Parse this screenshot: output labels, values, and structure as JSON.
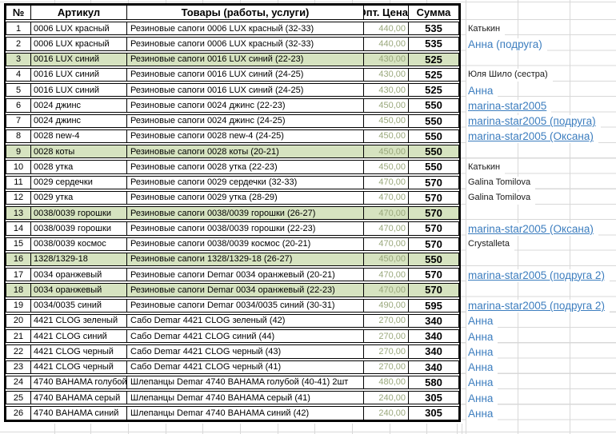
{
  "sheet": {
    "header": {
      "num": "№",
      "articul": "Артикул",
      "goods": "Товары (работы, услуги)",
      "price": "Опт. Цена",
      "sum": "Сумма"
    },
    "rows": [
      {
        "num": "1",
        "articul": "0006 LUX красный",
        "goods": "Резиновые сапоги 0006 LUX красный (32-33)",
        "price": "440,00",
        "sum": "535",
        "green": false,
        "name": "Катькин",
        "name_style": "plain"
      },
      {
        "num": "2",
        "articul": "0006 LUX красный",
        "goods": "Резиновые сапоги 0006 LUX красный (32-33)",
        "price": "440,00",
        "sum": "535",
        "green": false,
        "name": "Анна (подруга)",
        "name_style": "blue"
      },
      {
        "num": "3",
        "articul": "0016 LUX синий",
        "goods": "Резиновые сапоги 0016 LUX синий (22-23)",
        "price": "430,00",
        "sum": "525",
        "green": true,
        "name": "",
        "name_style": ""
      },
      {
        "num": "4",
        "articul": "0016 LUX синий",
        "goods": "Резиновые сапоги 0016 LUX синий (24-25)",
        "price": "430,00",
        "sum": "525",
        "green": false,
        "name": "Юля Шило (сестра)",
        "name_style": "plain"
      },
      {
        "num": "5",
        "articul": "0016 LUX синий",
        "goods": "Резиновые сапоги 0016 LUX синий (24-25)",
        "price": "430,00",
        "sum": "525",
        "green": false,
        "name": "Анна",
        "name_style": "blue"
      },
      {
        "num": "6",
        "articul": "0024 джинс",
        "goods": "Резиновые сапоги 0024 джинс (22-23)",
        "price": "450,00",
        "sum": "550",
        "green": false,
        "name": "marina-star2005",
        "name_style": "link"
      },
      {
        "num": "7",
        "articul": "0024 джинс",
        "goods": "Резиновые сапоги 0024 джинс (24-25)",
        "price": "450,00",
        "sum": "550",
        "green": false,
        "name": "marina-star2005 (подруга)",
        "name_style": "link"
      },
      {
        "num": "8",
        "articul": "0028 new-4",
        "goods": "Резиновые сапоги 0028 new-4 (24-25)",
        "price": "450,00",
        "sum": "550",
        "green": false,
        "name": "marina-star2005 (Оксана)",
        "name_style": "link"
      },
      {
        "num": "9",
        "articul": "0028 коты",
        "goods": "Резиновые сапоги 0028 коты (20-21)",
        "price": "450,00",
        "sum": "550",
        "green": true,
        "name": "",
        "name_style": ""
      },
      {
        "num": "10",
        "articul": "0028 утка",
        "goods": "Резиновые сапоги 0028 утка (22-23)",
        "price": "450,00",
        "sum": "550",
        "green": false,
        "name": "Катькин",
        "name_style": "plain"
      },
      {
        "num": "11",
        "articul": "0029 сердечки",
        "goods": "Резиновые сапоги 0029 сердечки (32-33)",
        "price": "470,00",
        "sum": "570",
        "green": false,
        "name": "Galina Tomilova",
        "name_style": "plain"
      },
      {
        "num": "12",
        "articul": "0029 утка",
        "goods": "Резиновые сапоги 0029 утка (28-29)",
        "price": "470,00",
        "sum": "570",
        "green": false,
        "name": "Galina Tomilova",
        "name_style": "plain"
      },
      {
        "num": "13",
        "articul": "0038/0039 горошки",
        "goods": "Резиновые сапоги 0038/0039 горошки (26-27)",
        "price": "470,00",
        "sum": "570",
        "green": true,
        "name": "",
        "name_style": ""
      },
      {
        "num": "14",
        "articul": "0038/0039 горошки",
        "goods": "Резиновые сапоги 0038/0039 горошки (22-23)",
        "price": "470,00",
        "sum": "570",
        "green": false,
        "name": "marina-star2005 (Оксана)",
        "name_style": "link"
      },
      {
        "num": "15",
        "articul": "0038/0039 космос",
        "goods": "Резиновые сапоги 0038/0039 космос (20-21)",
        "price": "470,00",
        "sum": "570",
        "green": false,
        "name": "Crystalleta",
        "name_style": "plain"
      },
      {
        "num": "16",
        "articul": "1328/1329-18",
        "goods": "Резиновые сапоги 1328/1329-18 (26-27)",
        "price": "450,00",
        "sum": "550",
        "green": true,
        "name": "",
        "name_style": ""
      },
      {
        "num": "17",
        "articul": "0034 оранжевый",
        "goods": "Резиновые сапоги Demar 0034 оранжевый (20-21)",
        "price": "470,00",
        "sum": "570",
        "green": false,
        "name": "marina-star2005 (подруга 2)",
        "name_style": "link"
      },
      {
        "num": "18",
        "articul": "0034 оранжевый",
        "goods": "Резиновые сапоги Demar 0034 оранжевый (22-23)",
        "price": "470,00",
        "sum": "570",
        "green": true,
        "name": "",
        "name_style": ""
      },
      {
        "num": "19",
        "articul": "0034/0035 синий",
        "goods": "Резиновые сапоги Demar 0034/0035 синий (30-31)",
        "price": "490,00",
        "sum": "595",
        "green": false,
        "name": "marina-star2005 (подруга 2)",
        "name_style": "link"
      },
      {
        "num": "20",
        "articul": "4421 CLOG зеленый",
        "goods": "Сабо Demar 4421 CLOG зеленый (42)",
        "price": "270,00",
        "sum": "340",
        "green": false,
        "name": "Анна",
        "name_style": "blue"
      },
      {
        "num": "21",
        "articul": "4421 CLOG синий",
        "goods": "Сабо Demar 4421 CLOG синий (44)",
        "price": "270,00",
        "sum": "340",
        "green": false,
        "name": "Анна",
        "name_style": "blue"
      },
      {
        "num": "22",
        "articul": "4421 CLOG черный",
        "goods": "Сабо Demar 4421 CLOG черный (43)",
        "price": "270,00",
        "sum": "340",
        "green": false,
        "name": "Анна",
        "name_style": "blue"
      },
      {
        "num": "23",
        "articul": "4421 CLOG черный",
        "goods": "Сабо Demar 4421 CLOG черный (41)",
        "price": "270,00",
        "sum": "340",
        "green": false,
        "name": "Анна",
        "name_style": "blue"
      },
      {
        "num": "24",
        "articul": "4740 BAHAMA голубой",
        "goods": "Шлепанцы Demar 4740 BAHAMA голубой (40-41) 2шт",
        "price": "480,00",
        "sum": "580",
        "green": false,
        "name": "Анна",
        "name_style": "blue"
      },
      {
        "num": "25",
        "articul": "4740 BAHAMA серый",
        "goods": "Шлепанцы Demar 4740 BAHAMA серый (41)",
        "price": "240,00",
        "sum": "305",
        "green": false,
        "name": "Анна",
        "name_style": "blue"
      },
      {
        "num": "26",
        "articul": "4740 BAHAMA синий",
        "goods": "Шлепанцы Demar 4740 BAHAMA синий (42)",
        "price": "240,00",
        "sum": "305",
        "green": false,
        "name": "Анна",
        "name_style": "blue"
      }
    ]
  },
  "colors": {
    "green_row": "#d6e3c0",
    "price_text": "#9aa87c",
    "link_blue": "#3d7ebf",
    "gridline": "#d8d8d8",
    "table_border": "#000000"
  }
}
